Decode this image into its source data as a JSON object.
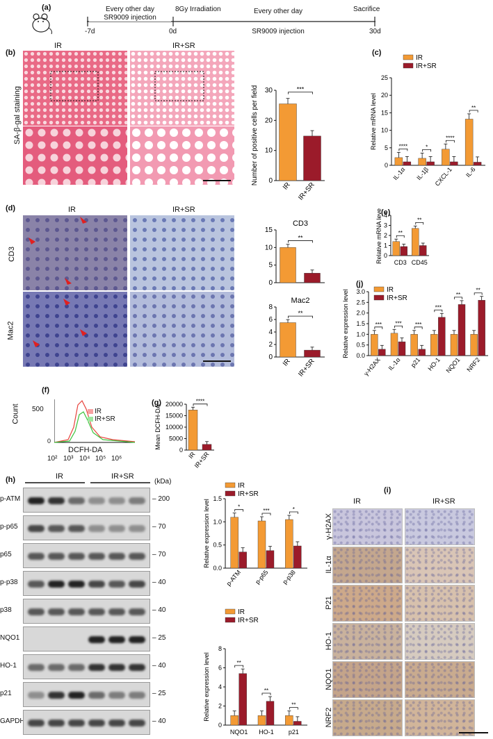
{
  "panel_a": {
    "label": "(a)",
    "t_start": "-7d",
    "t_irr": "0d",
    "t_end": "30d",
    "pre_line1": "Every other day",
    "pre_line2": "SR9009 injection",
    "irr": "8Gy Irradiation",
    "post_line1": "Every other day",
    "post_line2": "SR9009 injection",
    "sacrifice": "Sacrifice"
  },
  "panel_b": {
    "label": "(b)",
    "col_ir": "IR",
    "col_irsr": "IR+SR",
    "row_label": "SA-β-gal staining"
  },
  "panel_c": {
    "label": "(c)"
  },
  "panel_d": {
    "label": "(d)",
    "col_ir": "IR",
    "col_irsr": "IR+SR",
    "row1": "CD3",
    "row2": "Mac2"
  },
  "panel_e": {
    "label": "(e)"
  },
  "panel_f": {
    "label": "(f)",
    "ylabel": "Count",
    "xlabel": "DCFH-DA",
    "ytick": "500",
    "ytick0": "0",
    "xticks": [
      "10²",
      "10³",
      "10⁴",
      "10⁵",
      "10⁶"
    ],
    "legend": [
      "IR",
      "IR+SR"
    ]
  },
  "panel_g": {
    "label": "(g)"
  },
  "panel_h": {
    "label": "(h)",
    "kda": "(kDa)",
    "group_ir": "IR",
    "group_irsr": "IR+SR",
    "rows": [
      {
        "name": "p-ATM",
        "kda": "200"
      },
      {
        "name": "p-p65",
        "kda": "70"
      },
      {
        "name": "p65",
        "kda": "70"
      },
      {
        "name": "p-p38",
        "kda": "40"
      },
      {
        "name": "p38",
        "kda": "40"
      },
      {
        "name": "NQO1",
        "kda": "25"
      },
      {
        "name": "HO-1",
        "kda": "40"
      },
      {
        "name": "p21",
        "kda": "25"
      },
      {
        "name": "GAPDH",
        "kda": "40"
      }
    ]
  },
  "panel_i": {
    "label": "(i)",
    "col_ir": "IR",
    "col_irsr": "IR+SR",
    "rows": [
      "γ-H2AX",
      "IL-1α",
      "P21",
      "HO-1",
      "NQO1",
      "NRF2"
    ]
  },
  "panel_j": {
    "label": "(j)"
  },
  "colors": {
    "ir": "#F39A34",
    "irsr": "#9B1B2A"
  },
  "chart_data": [
    {
      "id": "b_bar",
      "type": "bar",
      "categories": [
        "IR",
        "IR+SR"
      ],
      "values": [
        25.5,
        14.8
      ],
      "ylabel": "Number of positive cells per field",
      "ylim": [
        0,
        30
      ],
      "yticks": [
        "0",
        "10",
        "20",
        "30"
      ],
      "significance": [
        "***"
      ]
    },
    {
      "id": "c_bar",
      "type": "bar",
      "categories": [
        "IL-1α",
        "IL-1β",
        "CXCL-1",
        "IL-6"
      ],
      "series": [
        {
          "name": "IR",
          "values": [
            2.2,
            2.0,
            4.6,
            13.2
          ]
        },
        {
          "name": "IR+SR",
          "values": [
            1.0,
            1.0,
            1.0,
            0.9
          ]
        }
      ],
      "ylabel": "Relative mRNA level",
      "ylim": [
        0,
        25
      ],
      "yticks": [
        "0",
        "5",
        "10",
        "15",
        "20",
        "25"
      ],
      "significance": [
        "****",
        "*",
        "****",
        "**"
      ],
      "legend": "top-right"
    },
    {
      "id": "d_cd3",
      "type": "bar",
      "title": "CD3",
      "categories": [
        "IR",
        "IR+SR"
      ],
      "values": [
        10.0,
        2.7
      ],
      "ylim": [
        0,
        15
      ],
      "yticks": [
        "0",
        "5",
        "10",
        "15"
      ],
      "significance": [
        "**"
      ]
    },
    {
      "id": "d_mac2",
      "type": "bar",
      "title": "Mac2",
      "categories": [
        "IR",
        "IR+SR"
      ],
      "values": [
        5.5,
        1.1
      ],
      "ylim": [
        0,
        8
      ],
      "yticks": [
        "0",
        "2",
        "4",
        "6",
        "8"
      ],
      "significance": [
        "**"
      ]
    },
    {
      "id": "e_bar",
      "type": "bar",
      "categories": [
        "CD3",
        "CD45"
      ],
      "series": [
        {
          "name": "IR",
          "values": [
            1.4,
            2.7
          ]
        },
        {
          "name": "IR+SR",
          "values": [
            0.9,
            1.0
          ]
        }
      ],
      "ylabel": "Relative mRNA level",
      "ylim": [
        0,
        4
      ],
      "yticks": [
        "0",
        "1",
        "2",
        "3",
        "4"
      ],
      "significance": [
        "**",
        "**"
      ]
    },
    {
      "id": "g_bar",
      "type": "bar",
      "categories": [
        "IR",
        "IR+SR"
      ],
      "values": [
        17500,
        2500
      ],
      "ylabel": "Mean DCFH-DA",
      "ylim": [
        0,
        20000
      ],
      "yticks": [
        "0",
        "5000",
        "10000",
        "15000",
        "20000"
      ],
      "significance": [
        "****"
      ]
    },
    {
      "id": "h_bar1",
      "type": "bar",
      "categories": [
        "p-ATM",
        "p-p65",
        "p-p38"
      ],
      "series": [
        {
          "name": "IR",
          "values": [
            1.1,
            1.02,
            1.05
          ]
        },
        {
          "name": "IR+SR",
          "values": [
            0.35,
            0.38,
            0.48
          ]
        }
      ],
      "ylabel": "Relative expression level",
      "ylim": [
        0,
        1.5
      ],
      "yticks": [
        "0.0",
        "0.5",
        "1.0",
        "1.5"
      ],
      "significance": [
        "*",
        "***",
        "*"
      ]
    },
    {
      "id": "h_bar2",
      "type": "bar",
      "categories": [
        "NQO1",
        "HO-1",
        "p21"
      ],
      "series": [
        {
          "name": "IR",
          "values": [
            1.0,
            1.0,
            1.0
          ]
        },
        {
          "name": "IR+SR",
          "values": [
            5.4,
            2.5,
            0.4
          ]
        }
      ],
      "ylabel": "Relative expression level",
      "ylim": [
        0,
        8
      ],
      "yticks": [
        "0",
        "2",
        "4",
        "6",
        "8"
      ],
      "significance": [
        "**",
        "**",
        "**"
      ]
    },
    {
      "id": "j_bar",
      "type": "bar",
      "categories": [
        "γ-H2AX",
        "IL-1α",
        "p21",
        "HO-1",
        "NQO1",
        "NRF2"
      ],
      "series": [
        {
          "name": "IR",
          "values": [
            1.0,
            1.05,
            1.0,
            1.0,
            1.0,
            1.0
          ]
        },
        {
          "name": "IR+SR",
          "values": [
            0.3,
            0.65,
            0.3,
            1.8,
            2.4,
            2.6
          ]
        }
      ],
      "ylabel": "Relative expression level",
      "ylim": [
        0,
        3
      ],
      "yticks": [
        "0.0",
        "0.5",
        "1.0",
        "1.5",
        "2.0",
        "2.5",
        "3.0"
      ],
      "significance": [
        "***",
        "***",
        "***",
        "***",
        "**",
        "**"
      ]
    }
  ]
}
